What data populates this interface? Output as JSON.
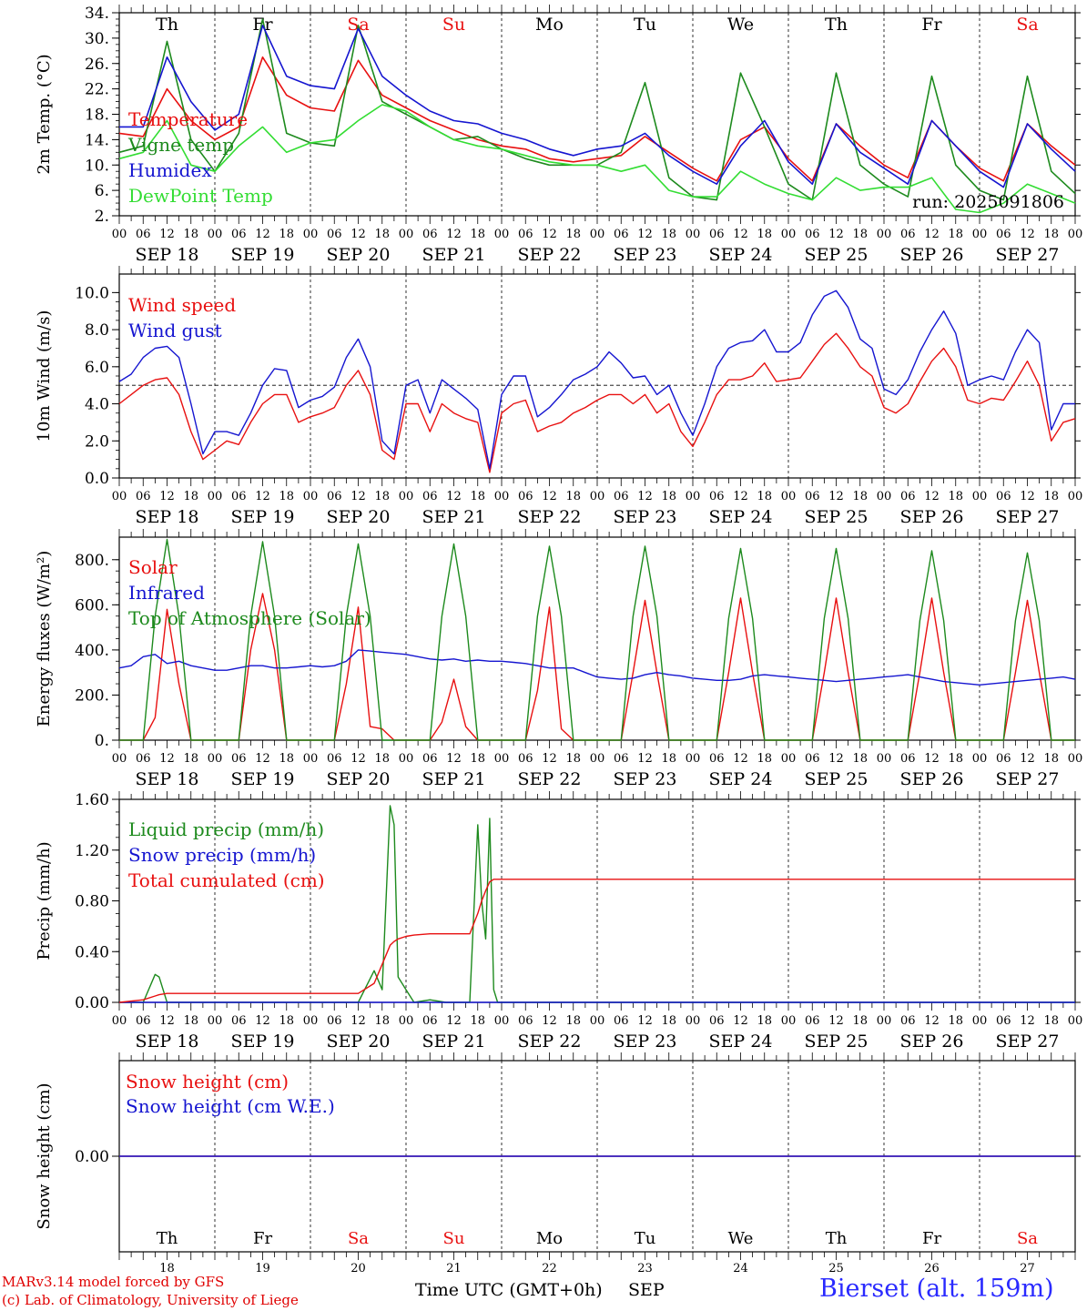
{
  "colors": {
    "red": "#e81010",
    "green": "#1d8a1d",
    "blue": "#1515d0",
    "lightgreen": "#33dd33",
    "weekend": "#e81010",
    "weekday": "#000000"
  },
  "days": [
    {
      "abbr": "Th",
      "date": "SEP 18",
      "num": "18",
      "weekend": false
    },
    {
      "abbr": "Fr",
      "date": "SEP 19",
      "num": "19",
      "weekend": false
    },
    {
      "abbr": "Sa",
      "date": "SEP 20",
      "num": "20",
      "weekend": true
    },
    {
      "abbr": "Su",
      "date": "SEP 21",
      "num": "21",
      "weekend": true
    },
    {
      "abbr": "Mo",
      "date": "SEP 22",
      "num": "22",
      "weekend": false
    },
    {
      "abbr": "Tu",
      "date": "SEP 23",
      "num": "23",
      "weekend": false
    },
    {
      "abbr": "We",
      "date": "SEP 24",
      "num": "24",
      "weekend": false
    },
    {
      "abbr": "Th",
      "date": "SEP 25",
      "num": "25",
      "weekend": false
    },
    {
      "abbr": "Fr",
      "date": "SEP 26",
      "num": "26",
      "weekend": false
    },
    {
      "abbr": "Sa",
      "date": "SEP 27",
      "num": "27",
      "weekend": true
    }
  ],
  "hour_ticks": [
    "00",
    "06",
    "12",
    "18"
  ],
  "final_hour_tick": "00",
  "footer": {
    "credit_line1": "MARv3.14 model forced by GFS",
    "credit_line2": "(c) Lab. of Climatology, University of Liege",
    "time_label": "Time UTC (GMT+0h)",
    "month_label": "SEP",
    "station": "Bierset (alt. 159m)"
  },
  "chart_data": [
    {
      "type": "line",
      "ylabel": "2m Temp. (°C)",
      "ylim": [
        2,
        34
      ],
      "yticks": [
        2,
        6,
        10,
        14,
        18,
        22,
        26,
        30,
        34
      ],
      "ytick_labels": [
        "2.",
        "6.",
        "10.",
        "14.",
        "18.",
        "22.",
        "26.",
        "30.",
        "34."
      ],
      "show_day_names": true,
      "annotation": "run: 2025091806",
      "x": [
        0,
        6,
        12,
        18,
        24,
        30,
        36,
        42,
        48,
        54,
        60,
        66,
        72,
        78,
        84,
        90,
        96,
        102,
        108,
        114,
        120,
        126,
        132,
        138,
        144,
        150,
        156,
        162,
        168,
        174,
        180,
        186,
        192,
        198,
        204,
        210,
        216,
        222,
        228,
        234,
        240
      ],
      "series": [
        {
          "name": "Temperature",
          "color": "red",
          "values": [
            15,
            14.5,
            22,
            17,
            14,
            16,
            27,
            21,
            19,
            18.5,
            26.5,
            21,
            19,
            17,
            15.5,
            14,
            13,
            12.5,
            11,
            10.5,
            11,
            11.5,
            14.5,
            12,
            9.5,
            7.5,
            14,
            16,
            11,
            7.5,
            16.5,
            13,
            10,
            8,
            17,
            13,
            9.5,
            7.5,
            16.5,
            13,
            10
          ]
        },
        {
          "name": "Vigne temp",
          "color": "green",
          "values": [
            12,
            13,
            29.5,
            14,
            9,
            15,
            33,
            15,
            13.5,
            13,
            32,
            20,
            18,
            16,
            14,
            14.5,
            12.5,
            11,
            10,
            10,
            10,
            12,
            23,
            8,
            5,
            4.5,
            24.5,
            16,
            7,
            4.5,
            24.5,
            10,
            7,
            5,
            24,
            10,
            6,
            4.5,
            24,
            9,
            5.5
          ]
        },
        {
          "name": "Humidex",
          "color": "blue",
          "values": [
            16,
            16,
            27,
            20,
            15.5,
            18,
            32,
            24,
            22.5,
            22,
            31.5,
            24,
            21,
            18.5,
            17,
            16.5,
            15,
            14,
            12.5,
            11.5,
            12.5,
            13,
            15,
            11.5,
            9,
            7,
            13,
            17,
            10.5,
            7,
            16.5,
            12,
            9.5,
            7,
            17,
            13,
            9,
            6.5,
            16.5,
            12.5,
            9
          ]
        },
        {
          "name": "DewPoint Temp",
          "color": "lightgreen",
          "values": [
            11,
            12,
            17,
            10,
            9,
            13,
            16,
            12,
            13.5,
            14,
            17,
            19.5,
            18.5,
            16,
            14,
            13,
            12.5,
            11.5,
            10.5,
            10,
            10,
            9,
            10,
            6,
            5,
            5,
            9,
            7,
            5.5,
            4.5,
            8,
            6,
            6.5,
            6.5,
            8,
            3,
            2.5,
            4,
            7,
            5.5,
            4
          ]
        }
      ]
    },
    {
      "type": "line",
      "ylabel": "10m Wind (m/s)",
      "ylim": [
        0,
        11
      ],
      "yticks": [
        0,
        2,
        4,
        6,
        8,
        10
      ],
      "ytick_labels": [
        "0.0",
        "2.0",
        "4.0",
        "6.0",
        "8.0",
        "10.0"
      ],
      "reference_line": 5,
      "x": [
        0,
        3,
        6,
        9,
        12,
        15,
        18,
        21,
        24,
        27,
        30,
        33,
        36,
        39,
        42,
        45,
        48,
        51,
        54,
        57,
        60,
        63,
        66,
        69,
        72,
        75,
        78,
        81,
        84,
        87,
        90,
        93,
        96,
        99,
        102,
        105,
        108,
        111,
        114,
        117,
        120,
        123,
        126,
        129,
        132,
        135,
        138,
        141,
        144,
        147,
        150,
        153,
        156,
        159,
        162,
        165,
        168,
        171,
        174,
        177,
        180,
        183,
        186,
        189,
        192,
        195,
        198,
        201,
        204,
        207,
        210,
        213,
        216,
        219,
        222,
        225,
        228,
        231,
        234,
        237,
        240
      ],
      "series": [
        {
          "name": "Wind speed",
          "color": "red",
          "values": [
            4,
            4.5,
            5,
            5.3,
            5.4,
            4.5,
            2.5,
            1,
            1.5,
            2,
            1.8,
            3,
            4,
            4.5,
            4.5,
            3,
            3.3,
            3.5,
            3.8,
            5,
            5.8,
            4.5,
            1.5,
            1,
            4,
            4,
            2.5,
            4,
            3.5,
            3.2,
            3,
            0.3,
            3.5,
            4,
            4.2,
            2.5,
            2.8,
            3,
            3.5,
            3.8,
            4.2,
            4.5,
            4.5,
            4,
            4.5,
            3.5,
            4,
            2.5,
            1.7,
            3,
            4.5,
            5.3,
            5.3,
            5.5,
            6.2,
            5.2,
            5.3,
            5.4,
            6.3,
            7.2,
            7.8,
            7,
            6,
            5.5,
            3.8,
            3.5,
            4,
            5.2,
            6.3,
            7,
            6,
            4.2,
            4,
            4.3,
            4.2,
            5.2,
            6.3,
            5,
            2,
            3,
            3.2
          ]
        },
        {
          "name": "Wind gust",
          "color": "blue",
          "values": [
            5.2,
            5.6,
            6.5,
            7,
            7.1,
            6.5,
            4,
            1.3,
            2.5,
            2.5,
            2.3,
            3.5,
            5,
            5.9,
            5.8,
            3.8,
            4.2,
            4.4,
            4.9,
            6.5,
            7.5,
            6,
            2,
            1.3,
            5,
            5.3,
            3.5,
            5.3,
            4.8,
            4.3,
            3.7,
            0.5,
            4.5,
            5.5,
            5.5,
            3.3,
            3.8,
            4.5,
            5.3,
            5.6,
            6,
            6.8,
            6.2,
            5.4,
            5.5,
            4.5,
            5,
            3.5,
            2.3,
            4,
            6,
            7,
            7.3,
            7.4,
            8,
            6.8,
            6.8,
            7.3,
            8.8,
            9.8,
            10.1,
            9.2,
            7.5,
            7,
            4.8,
            4.5,
            5.3,
            6.8,
            8,
            9,
            7.8,
            5,
            5.3,
            5.5,
            5.3,
            6.8,
            8,
            7.3,
            2.6,
            4,
            4
          ]
        }
      ]
    },
    {
      "type": "line",
      "ylabel": "Energy fluxes (W/m²)",
      "ylim": [
        0,
        900
      ],
      "yticks": [
        0,
        200,
        400,
        600,
        800
      ],
      "ytick_labels": [
        "0.",
        "200.",
        "400.",
        "600.",
        "800."
      ],
      "x": [
        0,
        3,
        6,
        9,
        12,
        15,
        18,
        21,
        24,
        27,
        30,
        33,
        36,
        39,
        42,
        45,
        48,
        51,
        54,
        57,
        60,
        63,
        66,
        69,
        72,
        75,
        78,
        81,
        84,
        87,
        90,
        93,
        96,
        99,
        102,
        105,
        108,
        111,
        114,
        117,
        120,
        123,
        126,
        129,
        132,
        135,
        138,
        141,
        144,
        147,
        150,
        153,
        156,
        159,
        162,
        165,
        168,
        171,
        174,
        177,
        180,
        183,
        186,
        189,
        192,
        195,
        198,
        201,
        204,
        207,
        210,
        213,
        216,
        219,
        222,
        225,
        228,
        231,
        234,
        237,
        240
      ],
      "series": [
        {
          "name": "Solar",
          "color": "red",
          "values": [
            0,
            0,
            0,
            100,
            580,
            250,
            0,
            0,
            0,
            0,
            0,
            400,
            650,
            400,
            0,
            0,
            0,
            0,
            0,
            250,
            590,
            60,
            50,
            0,
            0,
            0,
            0,
            80,
            270,
            60,
            0,
            0,
            0,
            0,
            0,
            220,
            590,
            50,
            0,
            0,
            0,
            0,
            0,
            300,
            620,
            300,
            0,
            0,
            0,
            0,
            0,
            300,
            630,
            300,
            0,
            0,
            0,
            0,
            0,
            300,
            630,
            300,
            0,
            0,
            0,
            0,
            0,
            300,
            630,
            300,
            0,
            0,
            0,
            0,
            0,
            300,
            620,
            300,
            0,
            0,
            0
          ]
        },
        {
          "name": "Infrared",
          "color": "blue",
          "values": [
            320,
            330,
            370,
            380,
            340,
            350,
            330,
            320,
            310,
            310,
            320,
            330,
            330,
            320,
            320,
            325,
            330,
            325,
            330,
            350,
            400,
            395,
            390,
            385,
            380,
            370,
            360,
            355,
            360,
            350,
            355,
            350,
            350,
            345,
            340,
            330,
            320,
            320,
            320,
            300,
            280,
            275,
            270,
            275,
            290,
            300,
            290,
            285,
            275,
            270,
            265,
            265,
            270,
            285,
            290,
            285,
            280,
            275,
            270,
            265,
            260,
            265,
            270,
            275,
            280,
            285,
            290,
            280,
            270,
            260,
            255,
            250,
            245,
            250,
            255,
            260,
            265,
            270,
            275,
            280,
            270
          ]
        },
        {
          "name": "Top of Atmosphere (Solar)",
          "color": "green",
          "values": [
            0,
            0,
            0,
            550,
            890,
            550,
            0,
            0,
            0,
            0,
            0,
            550,
            880,
            550,
            0,
            0,
            0,
            0,
            0,
            550,
            870,
            550,
            0,
            0,
            0,
            0,
            0,
            550,
            870,
            550,
            0,
            0,
            0,
            0,
            0,
            550,
            860,
            550,
            0,
            0,
            0,
            0,
            0,
            550,
            860,
            550,
            0,
            0,
            0,
            0,
            0,
            540,
            850,
            540,
            0,
            0,
            0,
            0,
            0,
            540,
            850,
            540,
            0,
            0,
            0,
            0,
            0,
            530,
            840,
            530,
            0,
            0,
            0,
            0,
            0,
            530,
            830,
            530,
            0,
            0,
            0
          ]
        }
      ]
    },
    {
      "type": "line",
      "ylabel": "Precip (mm/h)",
      "ylim": [
        0,
        1.6
      ],
      "yticks": [
        0,
        0.4,
        0.8,
        1.2,
        1.6
      ],
      "ytick_labels": [
        "0.00",
        "0.40",
        "0.80",
        "1.20",
        "1.60"
      ],
      "x": [
        0,
        6,
        9,
        10,
        12,
        14,
        30,
        54,
        60,
        64,
        66,
        68,
        69,
        70,
        72,
        74,
        78,
        82,
        88,
        90,
        91,
        92,
        93,
        94,
        95,
        96,
        98,
        104,
        240
      ],
      "series": [
        {
          "name": "Liquid precip (mm/h)",
          "color": "green",
          "values": [
            0,
            0,
            0.22,
            0.2,
            0,
            0,
            0,
            0,
            0,
            0.25,
            0.1,
            1.55,
            1.4,
            0.2,
            0.1,
            0,
            0.02,
            0,
            0,
            1.4,
            0.8,
            0.5,
            1.45,
            0.1,
            0,
            0,
            0,
            0,
            0
          ]
        },
        {
          "name": "Snow precip (mm/h)",
          "color": "blue",
          "values": [
            0,
            0,
            0,
            0,
            0,
            0,
            0,
            0,
            0,
            0,
            0,
            0,
            0,
            0,
            0,
            0,
            0,
            0,
            0,
            0,
            0,
            0,
            0,
            0,
            0,
            0,
            0,
            0,
            0
          ]
        },
        {
          "name": "Total cumulated (cm)",
          "color": "red",
          "values": [
            0,
            0.02,
            0.05,
            0.06,
            0.07,
            0.07,
            0.07,
            0.07,
            0.07,
            0.15,
            0.3,
            0.45,
            0.48,
            0.5,
            0.52,
            0.53,
            0.54,
            0.54,
            0.54,
            0.7,
            0.8,
            0.88,
            0.95,
            0.97,
            0.97,
            0.97,
            0.97,
            0.97,
            0.97
          ]
        }
      ]
    },
    {
      "type": "line",
      "ylabel": "Snow height (cm)",
      "ylim": [
        -1,
        1
      ],
      "yticks": [
        0
      ],
      "ytick_labels": [
        "0.00"
      ],
      "bottom_day_names": true,
      "x": [
        0,
        240
      ],
      "series": [
        {
          "name": "Snow height (cm)",
          "color": "red",
          "values": [
            0,
            0
          ]
        },
        {
          "name": "Snow height (cm W.E.)",
          "color": "blue",
          "values": [
            0,
            0
          ]
        }
      ]
    }
  ]
}
